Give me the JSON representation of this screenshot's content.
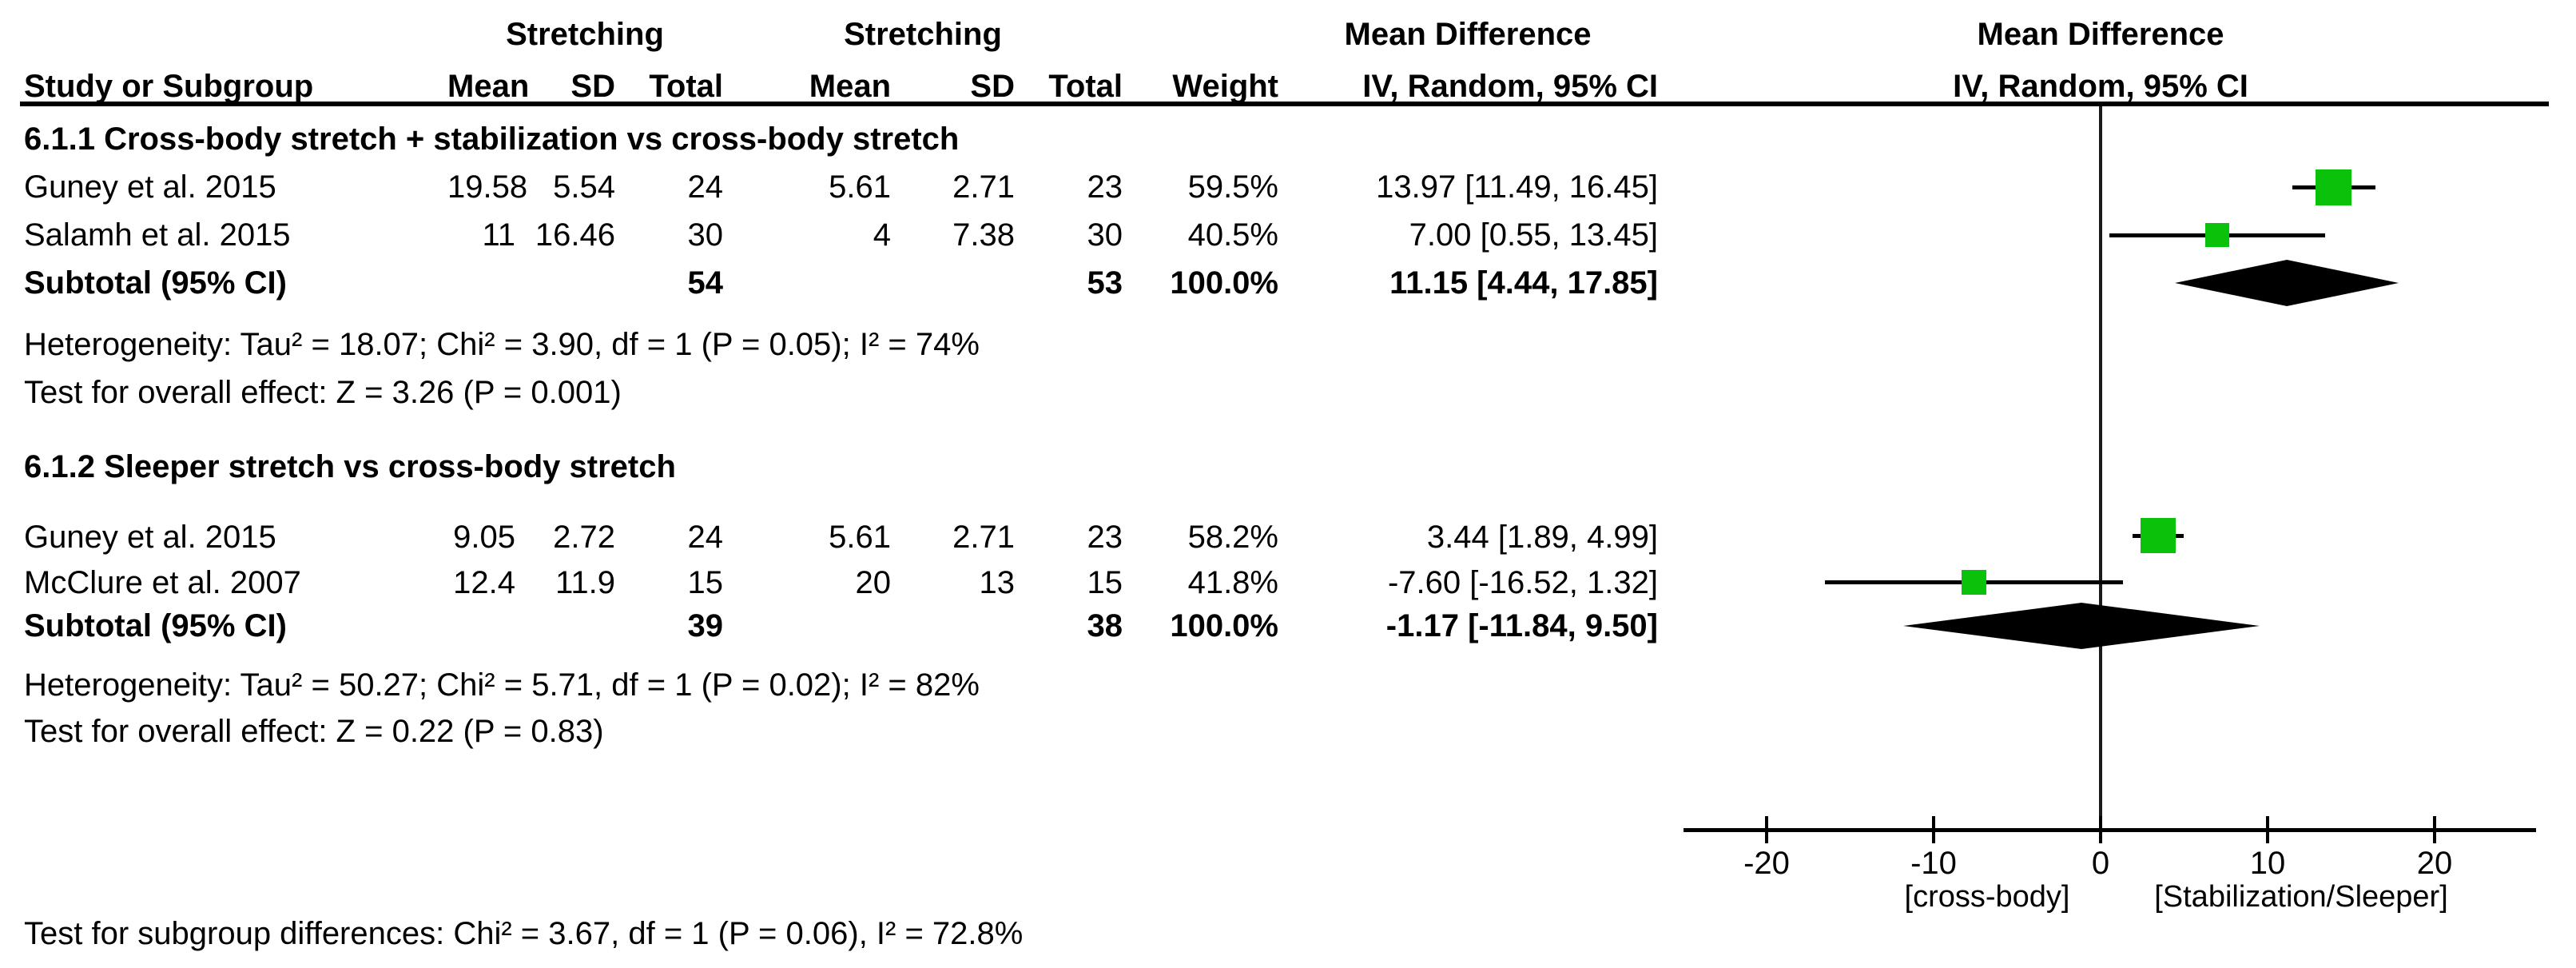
{
  "table_header": {
    "group1_label": "Stretching",
    "group2_label": "Stretching",
    "md_label": "Mean Difference",
    "col_study": "Study or Subgroup",
    "col_mean1": "Mean",
    "col_sd1": "SD",
    "col_total1": "Total",
    "col_mean2": "Mean",
    "col_sd2": "SD",
    "col_total2": "Total",
    "col_weight": "Weight",
    "col_ci": "IV, Random, 95% CI"
  },
  "plot_header": {
    "md_label": "Mean Difference",
    "ci_label": "IV, Random, 95% CI"
  },
  "colors": {
    "square_green": "#0BC20B",
    "ci_line": "#000000",
    "diamond": "#000000",
    "axis": "#000000"
  },
  "chart_data": {
    "type": "forest",
    "effect_measure": "Mean Difference",
    "model": "IV, Random, 95% CI",
    "xlim": [
      -25.2,
      26.0
    ],
    "ticks": [
      -20,
      -10,
      0,
      10,
      20
    ],
    "axis_labels": {
      "left": "[cross-body]",
      "right": "[Stabilization/Sleeper]"
    },
    "subgroups": [
      {
        "title": "6.1.1 Cross-body stretch + stabilization vs cross-body stretch",
        "studies": [
          {
            "name": "Guney et al. 2015",
            "mean1": "19.58",
            "sd1": "5.54",
            "total1": "24",
            "mean2": "5.61",
            "sd2": "2.71",
            "total2": "23",
            "weight": "59.5%",
            "ci_text": "13.97 [11.49, 16.45]",
            "md": 13.97,
            "lo": 11.49,
            "hi": 16.45,
            "weight_num": 59.5
          },
          {
            "name": "Salamh et al. 2015",
            "mean1": "11",
            "sd1": "16.46",
            "total1": "30",
            "mean2": "4",
            "sd2": "7.38",
            "total2": "30",
            "weight": "40.5%",
            "ci_text": "7.00 [0.55, 13.45]",
            "md": 7.0,
            "lo": 0.55,
            "hi": 13.45,
            "weight_num": 40.5
          }
        ],
        "subtotal": {
          "label": "Subtotal (95% CI)",
          "total1": "54",
          "total2": "53",
          "weight": "100.0%",
          "ci_text": "11.15 [4.44, 17.85]",
          "md": 11.15,
          "lo": 4.44,
          "hi": 17.85
        },
        "heterogeneity": "Heterogeneity: Tau² = 18.07; Chi² = 3.90, df = 1 (P = 0.05); I² = 74%",
        "overall_effect": "Test for overall effect: Z = 3.26 (P = 0.001)"
      },
      {
        "title": "6.1.2 Sleeper stretch vs cross-body stretch",
        "studies": [
          {
            "name": "Guney et al. 2015",
            "mean1": "9.05",
            "sd1": "2.72",
            "total1": "24",
            "mean2": "5.61",
            "sd2": "2.71",
            "total2": "23",
            "weight": "58.2%",
            "ci_text": "3.44 [1.89, 4.99]",
            "md": 3.44,
            "lo": 1.89,
            "hi": 4.99,
            "weight_num": 58.2
          },
          {
            "name": "McClure et al. 2007",
            "mean1": "12.4",
            "sd1": "11.9",
            "total1": "15",
            "mean2": "20",
            "sd2": "13",
            "total2": "15",
            "weight": "41.8%",
            "ci_text": "-7.60 [-16.52, 1.32]",
            "md": -7.6,
            "lo": -16.52,
            "hi": 1.32,
            "weight_num": 41.8
          }
        ],
        "subtotal": {
          "label": "Subtotal (95% CI)",
          "total1": "39",
          "total2": "38",
          "weight": "100.0%",
          "ci_text": "-1.17 [-11.84, 9.50]",
          "md": -1.17,
          "lo": -11.84,
          "hi": 9.5
        },
        "heterogeneity": "Heterogeneity: Tau² = 50.27; Chi² = 5.71, df = 1 (P = 0.02); I² = 82%",
        "overall_effect": "Test for overall effect: Z = 0.22 (P = 0.83)"
      }
    ],
    "footer": "Test for subgroup differences: Chi² = 3.67, df = 1 (P = 0.06), I² = 72.8%"
  }
}
